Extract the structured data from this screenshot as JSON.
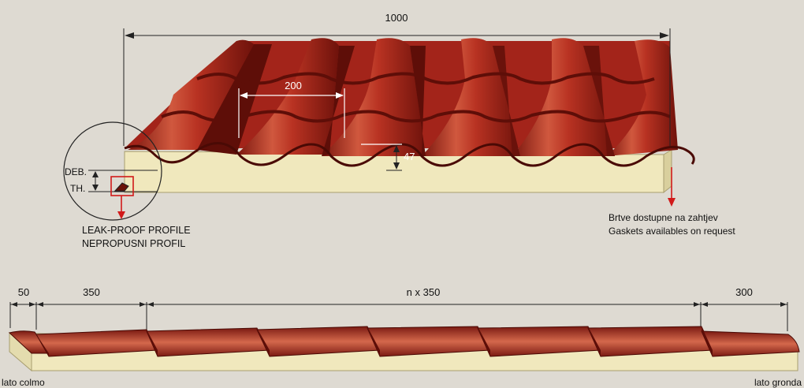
{
  "dimensions": {
    "total_width": "1000",
    "rib_pitch": "200",
    "rib_height": "47",
    "thickness_label_1": "DEB.",
    "thickness_label_2": "TH.",
    "seg_first": "50",
    "seg_second": "350",
    "seg_middle": "n x 350",
    "seg_last": "300"
  },
  "notes": {
    "leakproof_en": "LEAK-PROOF PROFILE",
    "leakproof_hr": "NEPROPUSNI PROFIL",
    "gaskets_hr": "Brtve dostupne na zahtjev",
    "gaskets_en": "Gaskets availables on request"
  },
  "labels": {
    "left_side": "lato colmo",
    "right_side": "lato gronda"
  },
  "colors": {
    "background": "#dedad2",
    "roof_red": "#a3241a",
    "roof_dark": "#5e0e08",
    "roof_light": "#d86a4e",
    "foam": "#f0e8bd",
    "arrow_red": "#d11a1a"
  }
}
